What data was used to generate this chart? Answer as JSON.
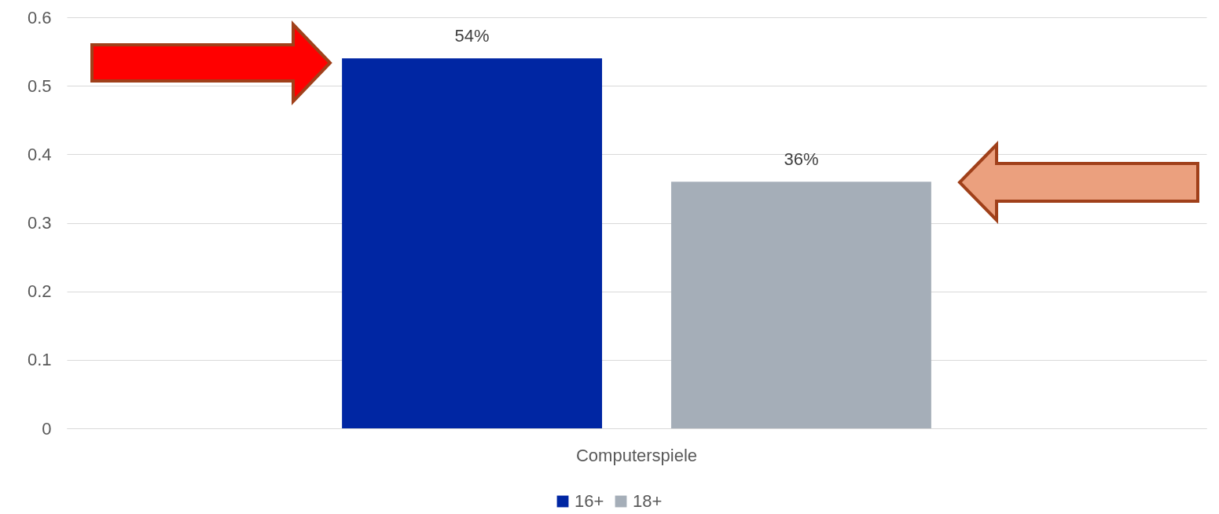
{
  "chart_data": {
    "type": "bar",
    "categories": [
      "Computerspiele"
    ],
    "series": [
      {
        "name": "16+",
        "color": "#0026a3",
        "values": [
          0.54
        ],
        "value_labels": [
          "54%"
        ]
      },
      {
        "name": "18+",
        "color": "#a5aeb8",
        "values": [
          0.36
        ],
        "value_labels": [
          "36%"
        ]
      }
    ],
    "ylim": [
      0,
      0.6
    ],
    "yticks": [
      0,
      0.1,
      0.2,
      0.3,
      0.4,
      0.5,
      0.6
    ],
    "grid": "y",
    "legend": "bottom"
  }
}
